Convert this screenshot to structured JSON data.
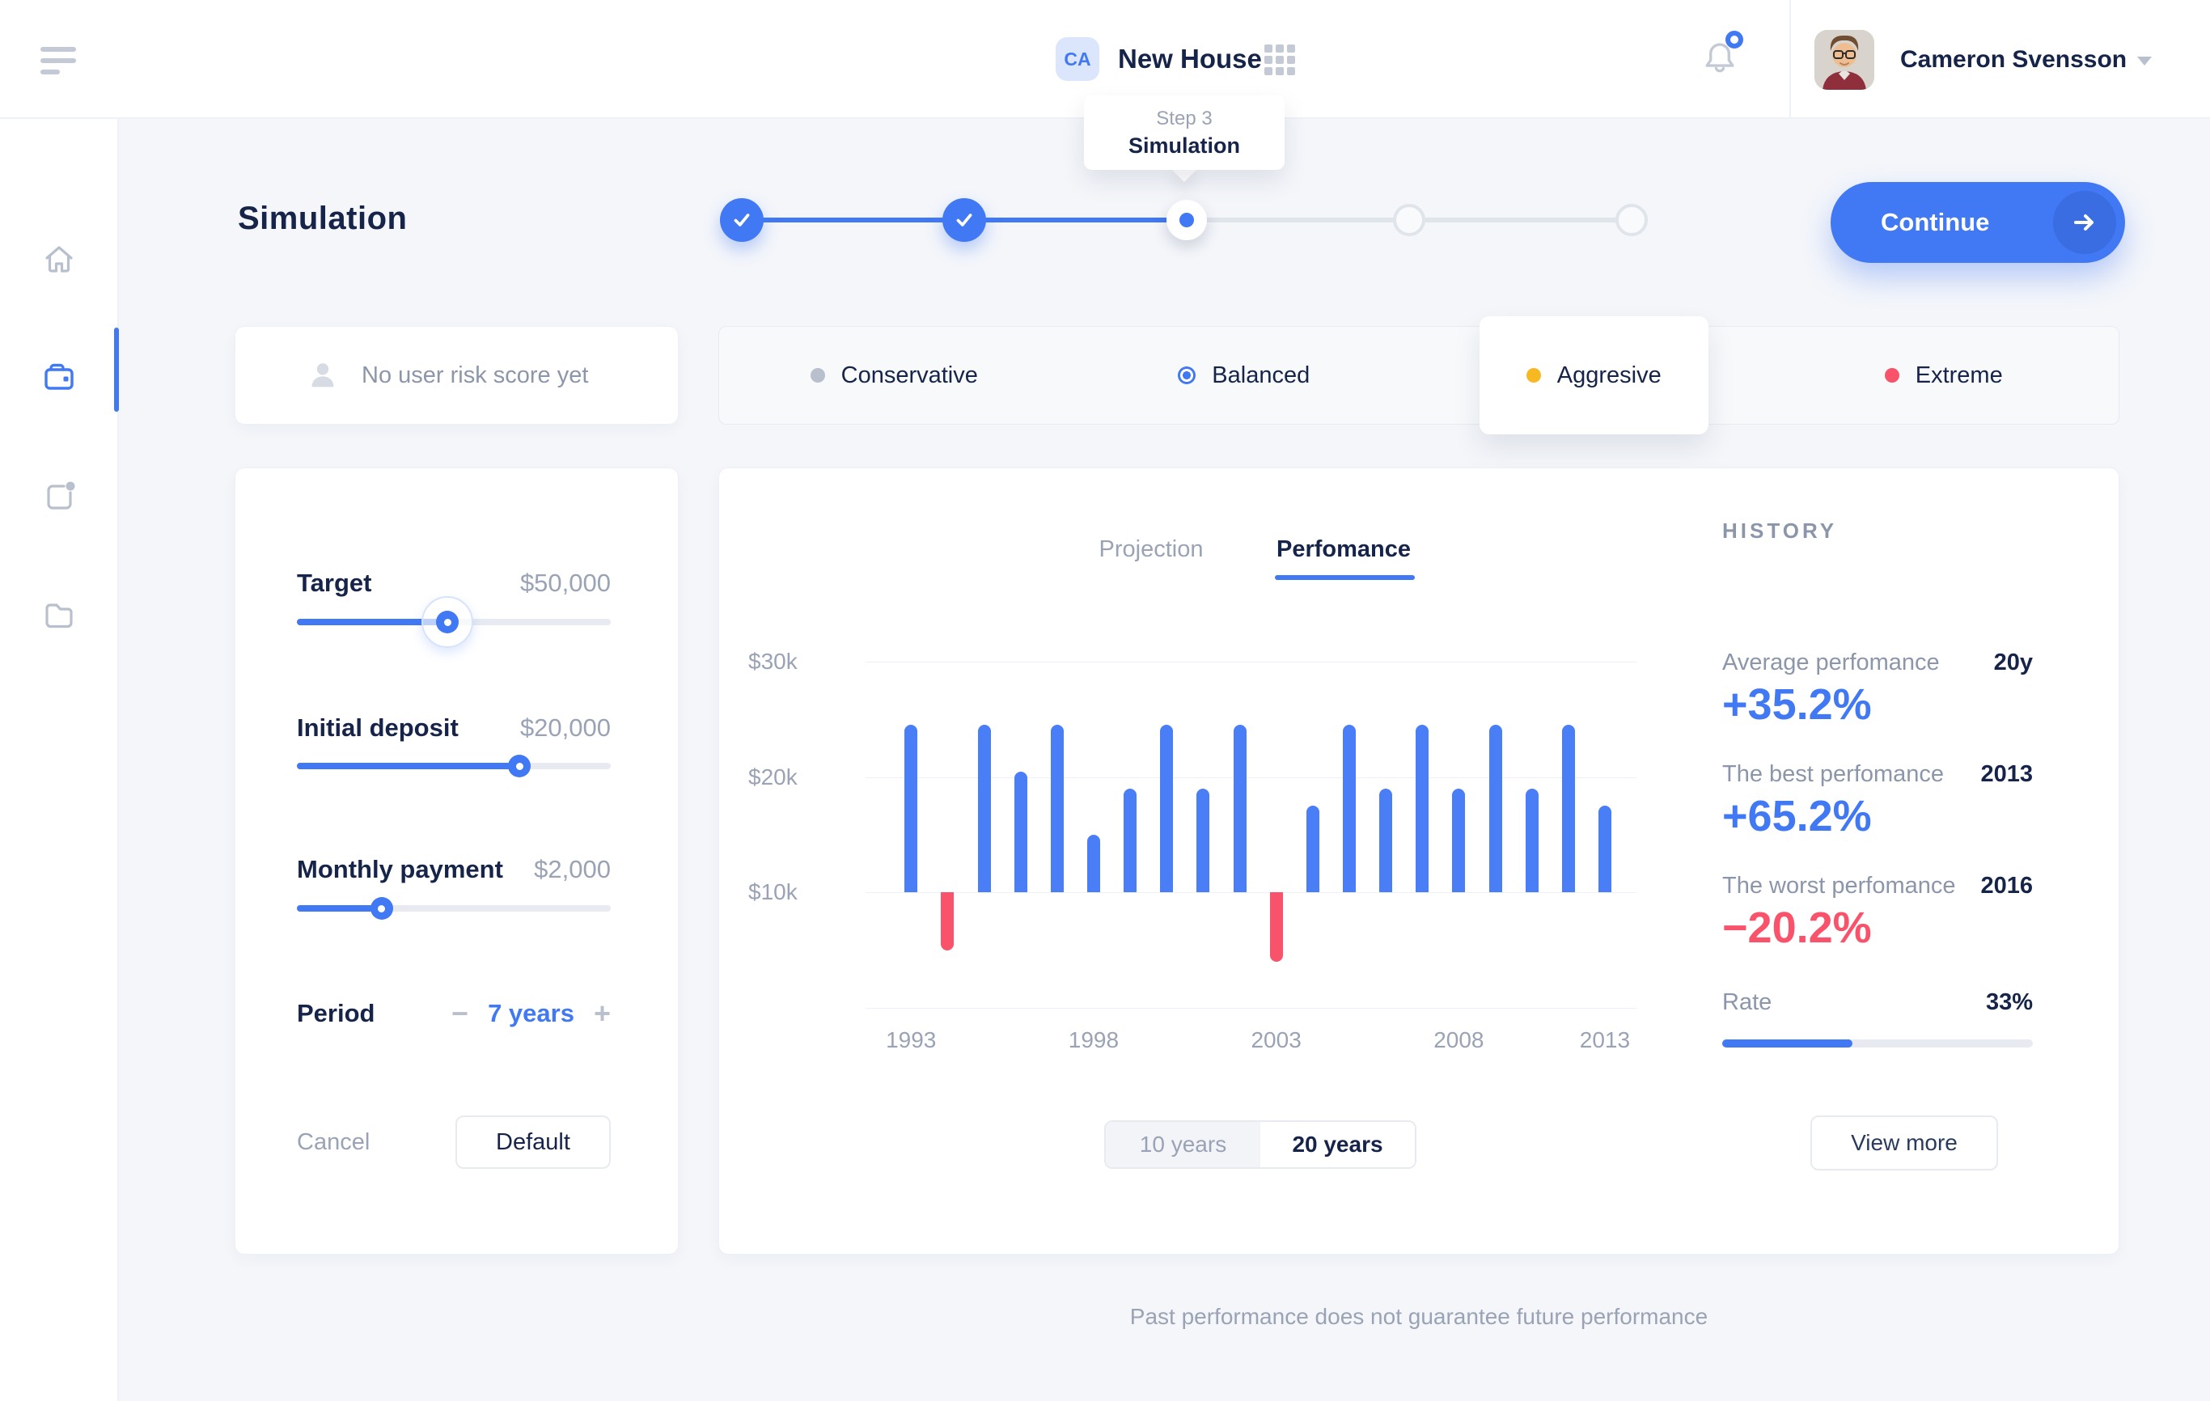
{
  "header": {
    "app_badge": "CA",
    "title": "New House",
    "user": "Cameron Svensson"
  },
  "tooltip": {
    "step": "Step 3",
    "label": "Simulation"
  },
  "page": {
    "title": "Simulation",
    "continue_label": "Continue",
    "footer_disclaimer": "Past performance does not guarantee future performance"
  },
  "stepper": {
    "steps": [
      {
        "state": "done"
      },
      {
        "state": "done"
      },
      {
        "state": "active"
      },
      {
        "state": "todo"
      },
      {
        "state": "todo"
      }
    ]
  },
  "risk": {
    "empty_label": "No user risk score yet",
    "options": [
      {
        "label": "Conservative",
        "color": "#b9c0cd",
        "active": false,
        "selected_dot": false
      },
      {
        "label": "Balanced",
        "color": "#4178f3",
        "active": false,
        "selected_dot": true
      },
      {
        "label": "Aggresive",
        "color": "#f8b821",
        "active": true,
        "selected_dot": false
      },
      {
        "label": "Extreme",
        "color": "#f9536b",
        "active": false,
        "selected_dot": false
      }
    ]
  },
  "params": {
    "items": [
      {
        "label": "Target",
        "value": "$50,000",
        "percent": 48,
        "halo": true
      },
      {
        "label": "Initial deposit",
        "value": "$20,000",
        "percent": 71,
        "halo": false
      },
      {
        "label": "Monthly payment",
        "value": "$2,000",
        "percent": 27,
        "halo": false
      }
    ],
    "period": {
      "label": "Period",
      "minus": "−",
      "value": "7 years",
      "plus": "+"
    },
    "cancel_label": "Cancel",
    "default_label": "Default"
  },
  "chart_tabs": {
    "projection": "Projection",
    "performance": "Perfomance"
  },
  "chart_data": {
    "type": "bar",
    "title": "Perfomance",
    "baseline_k": 10,
    "ylim_k": [
      0,
      30
    ],
    "y_ticks": [
      {
        "label": "$30k",
        "value_k": 30
      },
      {
        "label": "$20k",
        "value_k": 20
      },
      {
        "label": "$10k",
        "value_k": 10
      }
    ],
    "values_k": [
      24.5,
      5,
      24.5,
      20.5,
      24.5,
      15,
      19,
      24.5,
      19,
      24.5,
      4,
      17.5,
      24.5,
      19,
      24.5,
      19,
      24.5,
      19,
      24.5,
      17.5
    ],
    "x_tick_labels": [
      "1993",
      "1998",
      "2003",
      "2008",
      "2013"
    ],
    "x_tick_bar_index": [
      0,
      5,
      10,
      15,
      19
    ],
    "positive_color": "#4a7ef7",
    "negative_color": "#f9536b",
    "grid": true,
    "note": "bars rise from the $10k baseline; red bars fall below it"
  },
  "history": {
    "title": "HISTORY",
    "items": [
      {
        "label": "Average perfomance",
        "tag": "20y",
        "value": "+35.2%",
        "color": "#4178f3"
      },
      {
        "label": "The best perfomance",
        "tag": "2013",
        "value": "+65.2%",
        "color": "#4178f3"
      },
      {
        "label": "The worst perfomance",
        "tag": "2016",
        "value": "−20.2%",
        "color": "#f9536b"
      }
    ],
    "rate": {
      "label": "Rate",
      "value": "33%",
      "percent": 42
    },
    "view_more": "View more"
  },
  "range_toggle": {
    "options": [
      {
        "label": "10 years",
        "active": false
      },
      {
        "label": "20 years",
        "active": true
      }
    ]
  }
}
